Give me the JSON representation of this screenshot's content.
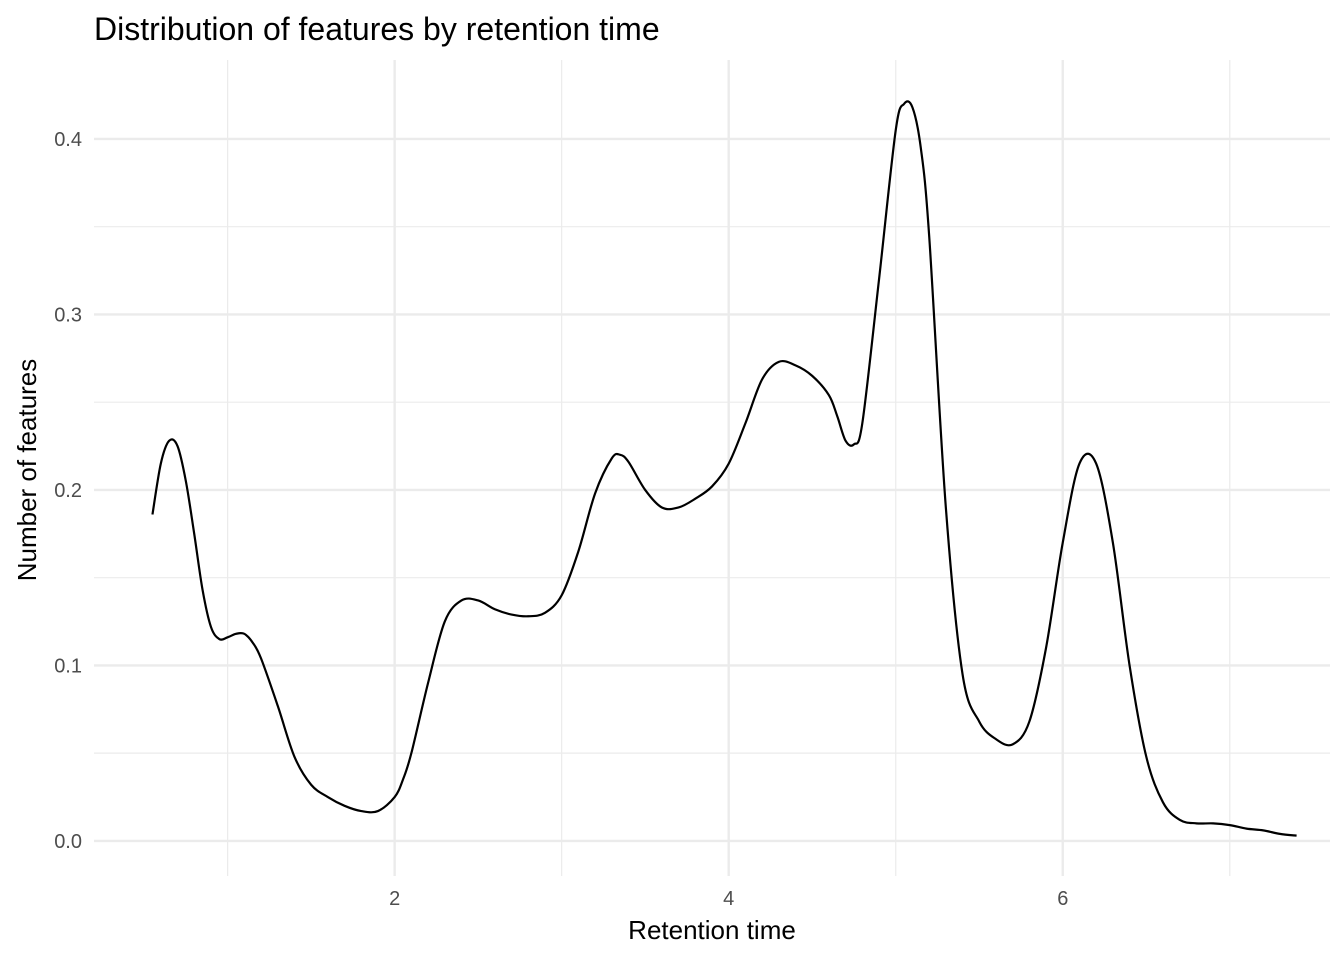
{
  "chart_data": {
    "type": "line",
    "title": "Distribution of features by retention time",
    "xlabel": "Retention time",
    "ylabel": "Number of features",
    "xlim": [
      0.2,
      7.6
    ],
    "ylim": [
      -0.02,
      0.445
    ],
    "x_major_ticks": [
      2,
      4,
      6
    ],
    "x_minor_ticks": [
      1,
      3,
      5,
      7
    ],
    "y_major_ticks": [
      0.0,
      0.1,
      0.2,
      0.3,
      0.4
    ],
    "y_minor_ticks": [
      0.05,
      0.15,
      0.25,
      0.35
    ],
    "x_tick_labels": [
      "2",
      "4",
      "6"
    ],
    "y_tick_labels": [
      "0.0",
      "0.1",
      "0.2",
      "0.3",
      "0.4"
    ],
    "grid": true,
    "legend": "none",
    "line_color": "#000000",
    "series": [
      {
        "x": [
          0.55,
          0.6,
          0.65,
          0.7,
          0.75,
          0.8,
          0.85,
          0.9,
          0.95,
          1.0,
          1.05,
          1.1,
          1.15,
          1.2,
          1.3,
          1.4,
          1.5,
          1.6,
          1.7,
          1.8,
          1.9,
          2.0,
          2.05,
          2.1,
          2.2,
          2.3,
          2.4,
          2.5,
          2.6,
          2.7,
          2.8,
          2.9,
          3.0,
          3.1,
          3.2,
          3.3,
          3.35,
          3.4,
          3.5,
          3.6,
          3.7,
          3.8,
          3.9,
          4.0,
          4.1,
          4.2,
          4.3,
          4.4,
          4.5,
          4.6,
          4.65,
          4.7,
          4.75,
          4.8,
          4.9,
          5.0,
          5.05,
          5.1,
          5.15,
          5.2,
          5.3,
          5.4,
          5.5,
          5.6,
          5.7,
          5.8,
          5.9,
          6.0,
          6.1,
          6.2,
          6.3,
          6.4,
          6.5,
          6.6,
          6.7,
          6.8,
          6.9,
          7.0,
          7.1,
          7.2,
          7.3,
          7.4
        ],
        "y": [
          0.186,
          0.215,
          0.228,
          0.225,
          0.205,
          0.175,
          0.143,
          0.122,
          0.115,
          0.116,
          0.118,
          0.118,
          0.113,
          0.104,
          0.077,
          0.048,
          0.032,
          0.025,
          0.02,
          0.017,
          0.017,
          0.025,
          0.035,
          0.05,
          0.09,
          0.125,
          0.137,
          0.137,
          0.132,
          0.129,
          0.128,
          0.13,
          0.14,
          0.165,
          0.198,
          0.218,
          0.22,
          0.216,
          0.2,
          0.19,
          0.19,
          0.195,
          0.202,
          0.215,
          0.238,
          0.263,
          0.273,
          0.271,
          0.265,
          0.254,
          0.242,
          0.228,
          0.226,
          0.238,
          0.32,
          0.405,
          0.42,
          0.418,
          0.395,
          0.345,
          0.19,
          0.095,
          0.068,
          0.058,
          0.055,
          0.068,
          0.11,
          0.17,
          0.215,
          0.215,
          0.17,
          0.1,
          0.048,
          0.022,
          0.012,
          0.01,
          0.01,
          0.009,
          0.007,
          0.006,
          0.004,
          0.003
        ]
      }
    ]
  }
}
